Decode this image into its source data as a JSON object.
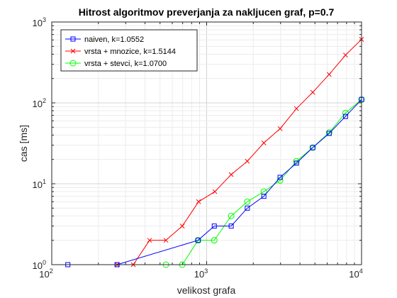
{
  "chart_data": {
    "type": "line",
    "title": "Hitrost algoritmov preverjanja za nakljucen graf, p=0.7",
    "xlabel": "velikost grafa",
    "ylabel": "cas [ms]",
    "xscale": "log",
    "yscale": "log",
    "xlim": [
      100,
      10000
    ],
    "ylim": [
      1,
      1000
    ],
    "grid": true,
    "legend_position": "top-left",
    "x_ticks": [
      {
        "base": "10",
        "exp": "2",
        "value": 100
      },
      {
        "base": "10",
        "exp": "3",
        "value": 1000
      },
      {
        "base": "10",
        "exp": "4",
        "value": 10000
      }
    ],
    "y_ticks": [
      {
        "base": "10",
        "exp": "0",
        "value": 1
      },
      {
        "base": "10",
        "exp": "1",
        "value": 10
      },
      {
        "base": "10",
        "exp": "2",
        "value": 100
      },
      {
        "base": "10",
        "exp": "3",
        "value": 1000
      }
    ],
    "series": [
      {
        "name": "naiven, k=1.0552",
        "color": "#0000ff",
        "marker": "square",
        "x": [
          127,
          264,
          880,
          1120,
          1440,
          1830,
          2340,
          2980,
          3800,
          4840,
          6180,
          7880,
          10000
        ],
        "y": [
          1,
          1,
          2,
          3,
          3,
          5,
          7,
          12,
          18,
          28,
          42,
          68,
          110
        ]
      },
      {
        "name": "vrsta + mnozice, k=1.5144",
        "color": "#ff0000",
        "marker": "x",
        "x": [
          264,
          336,
          428,
          546,
          696,
          887,
          1130,
          1440,
          1830,
          2340,
          2980,
          3800,
          4840,
          6180,
          7880,
          10000
        ],
        "y": [
          1,
          1,
          2,
          2,
          3,
          6,
          8,
          13,
          19,
          32,
          48,
          85,
          135,
          225,
          390,
          610
        ]
      },
      {
        "name": "vrsta + stevci, k=1.0700",
        "color": "#00ff00",
        "marker": "circle",
        "x": [
          546,
          696,
          880,
          1120,
          1440,
          1830,
          2340,
          2980,
          3800,
          4840,
          6180,
          7880,
          10000
        ],
        "y": [
          1,
          1,
          2,
          2,
          4,
          6,
          8,
          11,
          19,
          28,
          43,
          75,
          110
        ]
      }
    ]
  }
}
